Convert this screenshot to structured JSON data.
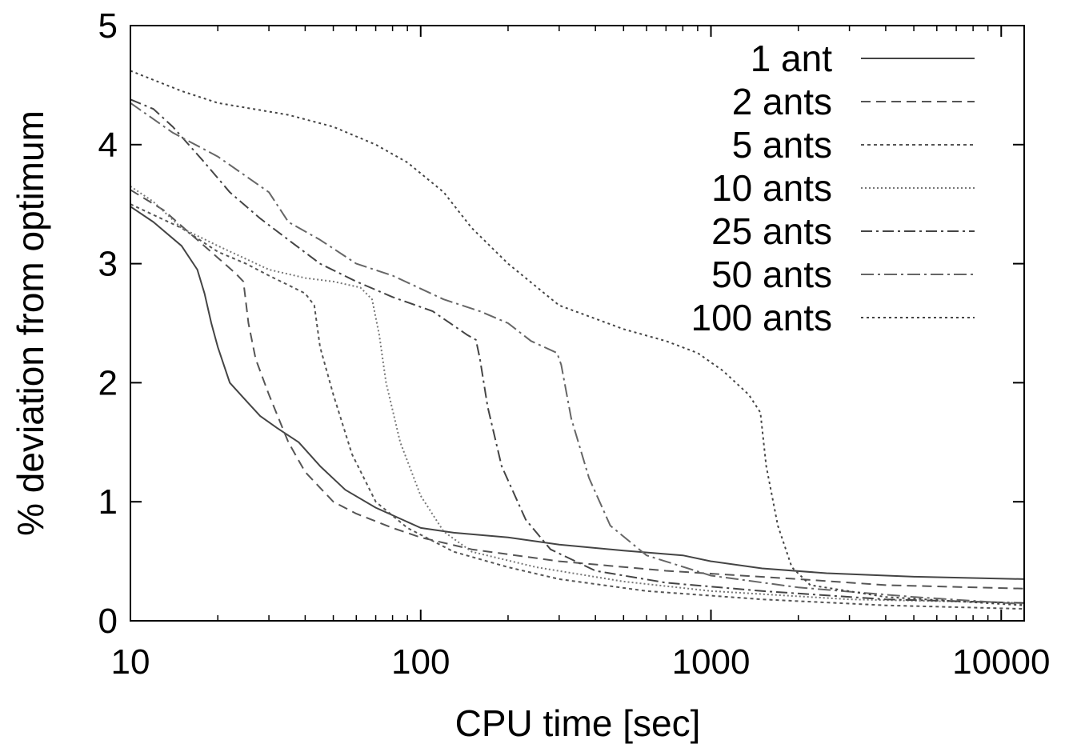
{
  "chart_data": {
    "type": "line",
    "title": "",
    "xlabel": "CPU time [sec]",
    "ylabel": "% deviation from optimum",
    "xscale": "log",
    "xlim": [
      10,
      12000
    ],
    "ylim": [
      0,
      5
    ],
    "xticks": [
      "10",
      "100",
      "1000",
      "10000"
    ],
    "yticks": [
      "0",
      "1",
      "2",
      "3",
      "4",
      "5"
    ],
    "grid": false,
    "legend_position": "top-right",
    "series": [
      {
        "name": "1 ant",
        "color": "#444444",
        "dash": "",
        "points": [
          [
            10,
            3.48
          ],
          [
            12,
            3.35
          ],
          [
            15,
            3.15
          ],
          [
            17,
            2.95
          ],
          [
            18,
            2.75
          ],
          [
            19,
            2.5
          ],
          [
            20,
            2.3
          ],
          [
            22,
            2.0
          ],
          [
            25,
            1.85
          ],
          [
            28,
            1.72
          ],
          [
            32,
            1.62
          ],
          [
            38,
            1.5
          ],
          [
            45,
            1.3
          ],
          [
            55,
            1.1
          ],
          [
            70,
            0.95
          ],
          [
            100,
            0.78
          ],
          [
            130,
            0.74
          ],
          [
            200,
            0.7
          ],
          [
            300,
            0.64
          ],
          [
            500,
            0.59
          ],
          [
            800,
            0.55
          ],
          [
            1000,
            0.5
          ],
          [
            1500,
            0.44
          ],
          [
            2500,
            0.4
          ],
          [
            5000,
            0.37
          ],
          [
            12000,
            0.35
          ]
        ]
      },
      {
        "name": "2 ants",
        "color": "#555555",
        "dash": "12,7",
        "points": [
          [
            10,
            3.62
          ],
          [
            13,
            3.45
          ],
          [
            17,
            3.2
          ],
          [
            20,
            3.05
          ],
          [
            23,
            2.92
          ],
          [
            24.5,
            2.85
          ],
          [
            25.5,
            2.5
          ],
          [
            27,
            2.2
          ],
          [
            30,
            1.9
          ],
          [
            35,
            1.5
          ],
          [
            40,
            1.25
          ],
          [
            50,
            1.0
          ],
          [
            60,
            0.9
          ],
          [
            80,
            0.78
          ],
          [
            100,
            0.7
          ],
          [
            150,
            0.6
          ],
          [
            300,
            0.5
          ],
          [
            700,
            0.42
          ],
          [
            2000,
            0.35
          ],
          [
            4000,
            0.3
          ],
          [
            12000,
            0.27
          ]
        ]
      },
      {
        "name": "5 ants",
        "color": "#555555",
        "dash": "4,4",
        "points": [
          [
            10,
            3.5
          ],
          [
            15,
            3.3
          ],
          [
            20,
            3.1
          ],
          [
            25,
            3.0
          ],
          [
            30,
            2.9
          ],
          [
            35,
            2.82
          ],
          [
            40,
            2.75
          ],
          [
            43,
            2.65
          ],
          [
            45,
            2.3
          ],
          [
            50,
            1.9
          ],
          [
            58,
            1.4
          ],
          [
            70,
            1.0
          ],
          [
            90,
            0.78
          ],
          [
            130,
            0.58
          ],
          [
            200,
            0.45
          ],
          [
            300,
            0.35
          ],
          [
            600,
            0.25
          ],
          [
            1500,
            0.18
          ],
          [
            4000,
            0.13
          ],
          [
            12000,
            0.1
          ]
        ]
      },
      {
        "name": "10 ants",
        "color": "#777777",
        "dash": "2,3",
        "points": [
          [
            10,
            3.65
          ],
          [
            12,
            3.52
          ],
          [
            15,
            3.3
          ],
          [
            20,
            3.15
          ],
          [
            30,
            2.95
          ],
          [
            40,
            2.88
          ],
          [
            50,
            2.85
          ],
          [
            62,
            2.8
          ],
          [
            68,
            2.7
          ],
          [
            72,
            2.4
          ],
          [
            76,
            2.0
          ],
          [
            85,
            1.5
          ],
          [
            100,
            1.05
          ],
          [
            120,
            0.75
          ],
          [
            150,
            0.58
          ],
          [
            250,
            0.45
          ],
          [
            500,
            0.33
          ],
          [
            1000,
            0.25
          ],
          [
            3000,
            0.18
          ],
          [
            12000,
            0.15
          ]
        ]
      },
      {
        "name": "25 ants",
        "color": "#444444",
        "dash": "14,5,3,5",
        "points": [
          [
            10,
            4.38
          ],
          [
            12,
            4.3
          ],
          [
            14,
            4.15
          ],
          [
            18,
            3.85
          ],
          [
            22,
            3.6
          ],
          [
            28,
            3.38
          ],
          [
            35,
            3.2
          ],
          [
            45,
            3.0
          ],
          [
            60,
            2.85
          ],
          [
            80,
            2.72
          ],
          [
            110,
            2.6
          ],
          [
            145,
            2.4
          ],
          [
            155,
            2.36
          ],
          [
            160,
            2.2
          ],
          [
            170,
            1.8
          ],
          [
            190,
            1.3
          ],
          [
            230,
            0.85
          ],
          [
            280,
            0.6
          ],
          [
            400,
            0.42
          ],
          [
            700,
            0.32
          ],
          [
            1500,
            0.25
          ],
          [
            4000,
            0.18
          ],
          [
            12000,
            0.15
          ]
        ]
      },
      {
        "name": "50 ants",
        "color": "#666666",
        "dash": "16,5,3,5",
        "points": [
          [
            10,
            4.35
          ],
          [
            14,
            4.1
          ],
          [
            20,
            3.9
          ],
          [
            30,
            3.6
          ],
          [
            35,
            3.35
          ],
          [
            45,
            3.2
          ],
          [
            60,
            3.0
          ],
          [
            80,
            2.9
          ],
          [
            120,
            2.7
          ],
          [
            160,
            2.6
          ],
          [
            200,
            2.5
          ],
          [
            240,
            2.35
          ],
          [
            295,
            2.25
          ],
          [
            305,
            2.15
          ],
          [
            330,
            1.7
          ],
          [
            380,
            1.2
          ],
          [
            450,
            0.8
          ],
          [
            600,
            0.55
          ],
          [
            1000,
            0.38
          ],
          [
            2000,
            0.28
          ],
          [
            5000,
            0.2
          ],
          [
            12000,
            0.14
          ]
        ]
      },
      {
        "name": "100 ants",
        "color": "#444444",
        "dash": "3,4",
        "points": [
          [
            10,
            4.62
          ],
          [
            15,
            4.45
          ],
          [
            20,
            4.35
          ],
          [
            35,
            4.25
          ],
          [
            50,
            4.15
          ],
          [
            70,
            4.0
          ],
          [
            90,
            3.85
          ],
          [
            120,
            3.6
          ],
          [
            150,
            3.3
          ],
          [
            200,
            3.0
          ],
          [
            300,
            2.65
          ],
          [
            500,
            2.45
          ],
          [
            700,
            2.35
          ],
          [
            900,
            2.25
          ],
          [
            1100,
            2.1
          ],
          [
            1350,
            1.9
          ],
          [
            1480,
            1.75
          ],
          [
            1550,
            1.3
          ],
          [
            1700,
            0.8
          ],
          [
            1900,
            0.45
          ],
          [
            2200,
            0.3
          ],
          [
            4000,
            0.2
          ],
          [
            12000,
            0.13
          ]
        ]
      }
    ]
  }
}
